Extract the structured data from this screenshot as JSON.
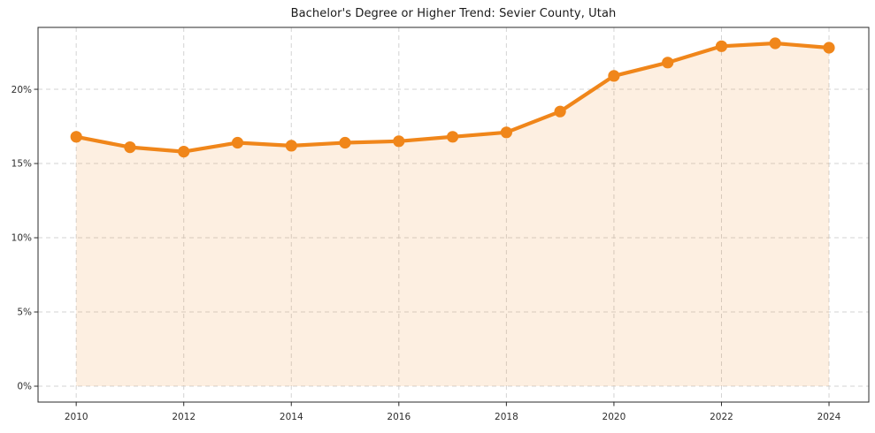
{
  "chart_data": {
    "type": "line",
    "title": "Bachelor's Degree or Higher Trend: Sevier County, Utah",
    "xlabel": "",
    "ylabel": "",
    "unit": "%",
    "x": [
      2010,
      2011,
      2012,
      2013,
      2014,
      2015,
      2016,
      2017,
      2018,
      2019,
      2020,
      2021,
      2022,
      2023,
      2024
    ],
    "series": [
      {
        "name": "Bachelor's Degree or Higher",
        "values": [
          16.8,
          16.1,
          15.8,
          16.4,
          16.2,
          16.4,
          16.5,
          16.8,
          17.1,
          18.5,
          20.9,
          21.8,
          22.9,
          23.1,
          22.8
        ]
      }
    ],
    "x_ticks": [
      2010,
      2012,
      2014,
      2016,
      2018,
      2020,
      2022,
      2024
    ],
    "x_tick_labels": [
      "2010",
      "2012",
      "2014",
      "2016",
      "2018",
      "2020",
      "2022",
      "2024"
    ],
    "y_ticks": [
      0,
      5,
      10,
      15,
      20
    ],
    "y_tick_labels": [
      "0%",
      "5%",
      "10%",
      "15%",
      "20%"
    ],
    "xlim": [
      2009.29,
      2024.74
    ],
    "ylim": [
      -1.07,
      24.17
    ],
    "grid": true,
    "grid_style": "dashed",
    "legend_position": "none",
    "area_baseline": 0,
    "colors": {
      "line": "#f0861a",
      "marker": "#f0861a",
      "area_fill": "rgba(241,134,26,0.13)",
      "grid": "#d3d3d3",
      "axis": "#2a2a2a",
      "tick_text": "#2e2e2e",
      "title_text": "#1a1a1a",
      "background": "#ffffff"
    }
  }
}
